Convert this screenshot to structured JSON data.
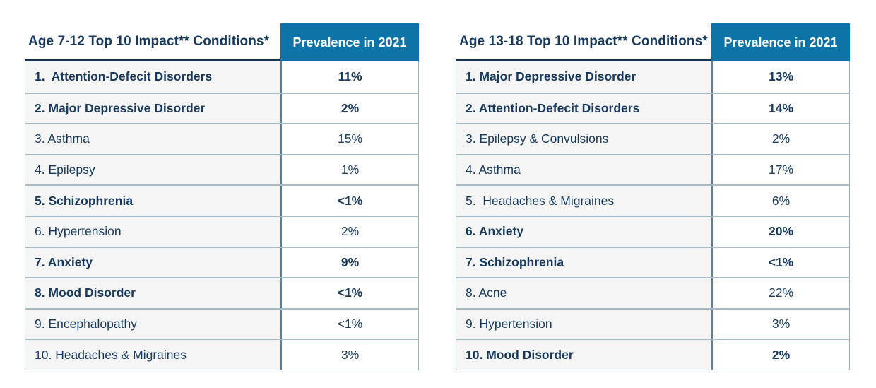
{
  "colors": {
    "header_bg": "#0E73A6",
    "header_text": "#ffffff",
    "text_navy": "#17395D",
    "title_rule": "#16324F",
    "label_cell_bg": "#F5F5F6",
    "row_separator": "#A9BAC7",
    "column_divider": "#5E7E95",
    "outer_border": "#9FAEBB",
    "page_bg": "#ffffff"
  },
  "chart_data": [
    {
      "type": "table",
      "title": "Age 7-12 Top 10 Impact** Conditions*",
      "value_header": "Prevalence in 2021",
      "columns": [
        "Condition",
        "Prevalence in 2021"
      ],
      "rows": [
        {
          "label": "1.  Attention-Defecit Disorders",
          "value": "11%",
          "bold": true
        },
        {
          "label": "2. Major Depressive Disorder",
          "value": "2%",
          "bold": true
        },
        {
          "label": "3. Asthma",
          "value": "15%",
          "bold": false
        },
        {
          "label": "4. Epilepsy",
          "value": "1%",
          "bold": false
        },
        {
          "label": "5. Schizophrenia",
          "value": "<1%",
          "bold": true
        },
        {
          "label": "6. Hypertension",
          "value": "2%",
          "bold": false
        },
        {
          "label": "7. Anxiety",
          "value": "9%",
          "bold": true
        },
        {
          "label": "8. Mood Disorder",
          "value": "<1%",
          "bold": true
        },
        {
          "label": "9. Encephalopathy",
          "value": "<1%",
          "bold": false
        },
        {
          "label": "10. Headaches & Migraines",
          "value": "3%",
          "bold": false
        }
      ]
    },
    {
      "type": "table",
      "title": "Age 13-18 Top 10 Impact** Conditions*",
      "value_header": "Prevalence in 2021",
      "columns": [
        "Condition",
        "Prevalence in 2021"
      ],
      "rows": [
        {
          "label": "1. Major Depressive Disorder",
          "value": "13%",
          "bold": true
        },
        {
          "label": "2. Attention-Defecit Disorders",
          "value": "14%",
          "bold": true
        },
        {
          "label": "3. Epilepsy & Convulsions",
          "value": "2%",
          "bold": false
        },
        {
          "label": "4. Asthma",
          "value": "17%",
          "bold": false
        },
        {
          "label": "5.  Headaches & Migraines",
          "value": "6%",
          "bold": false
        },
        {
          "label": "6. Anxiety",
          "value": "20%",
          "bold": true
        },
        {
          "label": "7. Schizophrenia",
          "value": "<1%",
          "bold": true
        },
        {
          "label": "8. Acne",
          "value": "22%",
          "bold": false
        },
        {
          "label": "9. Hypertension",
          "value": "3%",
          "bold": false
        },
        {
          "label": "10. Mood Disorder",
          "value": "2%",
          "bold": true
        }
      ]
    }
  ]
}
